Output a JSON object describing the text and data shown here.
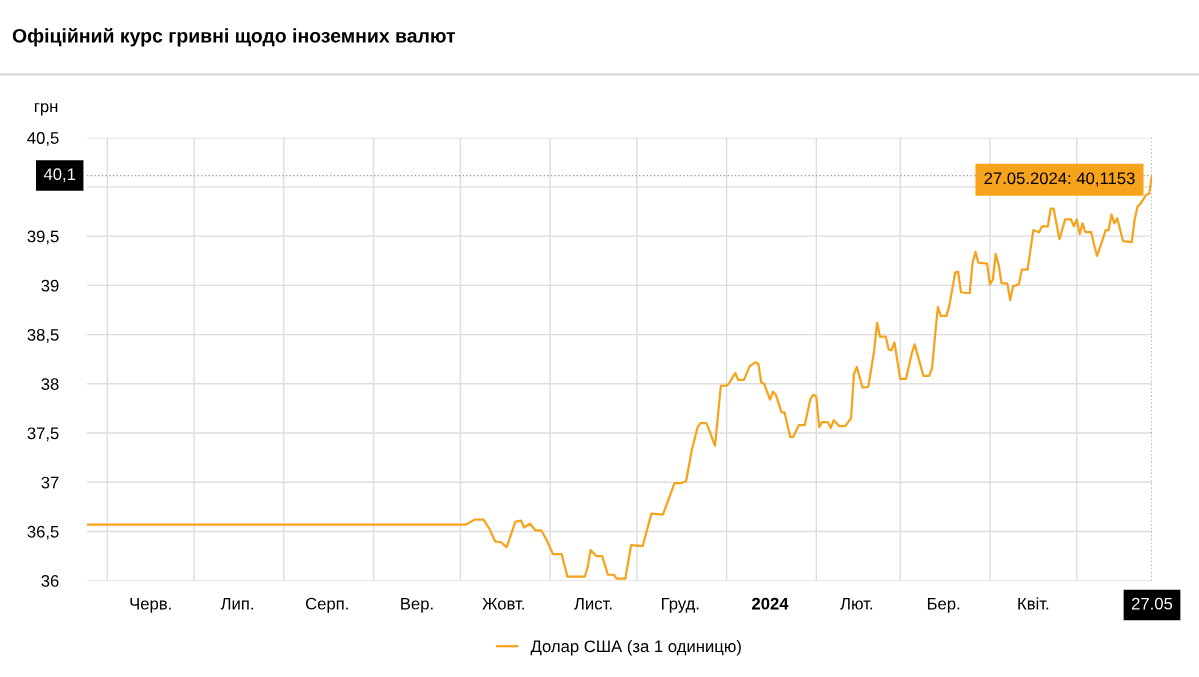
{
  "chart_data": {
    "type": "line",
    "title": "Офіційний курс гривні щодо іноземних валют",
    "ylabel": "грн",
    "x": [
      "2023-05-25",
      "2023-10-03",
      "2023-10-06",
      "2023-10-09",
      "2023-10-11",
      "2023-10-13",
      "2023-10-15",
      "2023-10-17",
      "2023-10-20",
      "2023-10-22",
      "2023-10-23",
      "2023-10-25",
      "2023-10-27",
      "2023-10-29",
      "2023-10-31",
      "2023-11-02",
      "2023-11-05",
      "2023-11-07",
      "2023-11-13",
      "2023-11-14",
      "2023-11-15",
      "2023-11-17",
      "2023-11-19",
      "2023-11-21",
      "2023-11-23",
      "2023-11-24",
      "2023-11-27",
      "2023-11-29",
      "2023-12-03",
      "2023-12-06",
      "2023-12-10",
      "2023-12-14",
      "2023-12-16",
      "2023-12-18",
      "2023-12-20",
      "2023-12-22",
      "2023-12-23",
      "2023-12-25",
      "2023-12-26",
      "2023-12-28",
      "2023-12-30",
      "2024-01-01",
      "2024-01-02",
      "2024-01-04",
      "2024-01-05",
      "2024-01-07",
      "2024-01-09",
      "2024-01-11",
      "2024-01-12",
      "2024-01-13",
      "2024-01-14",
      "2024-01-16",
      "2024-01-17",
      "2024-01-18",
      "2024-01-20",
      "2024-01-21",
      "2024-01-23",
      "2024-01-24",
      "2024-01-26",
      "2024-01-28",
      "2024-01-30",
      "2024-01-31",
      "2024-02-01",
      "2024-02-02",
      "2024-02-03",
      "2024-02-05",
      "2024-02-06",
      "2024-02-07",
      "2024-02-09",
      "2024-02-11",
      "2024-02-13",
      "2024-02-14",
      "2024-02-15",
      "2024-02-17",
      "2024-02-19",
      "2024-02-21",
      "2024-02-22",
      "2024-02-23",
      "2024-02-25",
      "2024-02-26",
      "2024-02-27",
      "2024-02-28",
      "2024-03-01",
      "2024-03-03",
      "2024-03-05",
      "2024-03-06",
      "2024-03-09",
      "2024-03-11",
      "2024-03-12",
      "2024-03-13",
      "2024-03-14",
      "2024-03-15",
      "2024-03-17",
      "2024-03-18",
      "2024-03-20",
      "2024-03-21",
      "2024-03-22",
      "2024-03-25",
      "2024-03-26",
      "2024-03-27",
      "2024-03-28",
      "2024-03-31",
      "2024-04-01",
      "2024-04-02",
      "2024-04-03",
      "2024-04-04",
      "2024-04-05",
      "2024-04-07",
      "2024-04-08",
      "2024-04-09",
      "2024-04-11",
      "2024-04-12",
      "2024-04-14",
      "2024-04-16",
      "2024-04-18",
      "2024-04-19",
      "2024-04-21",
      "2024-04-22",
      "2024-04-23",
      "2024-04-25",
      "2024-04-27",
      "2024-04-29",
      "2024-04-30",
      "2024-05-01",
      "2024-05-02",
      "2024-05-03",
      "2024-05-04",
      "2024-05-06",
      "2024-05-07",
      "2024-05-08",
      "2024-05-09",
      "2024-05-11",
      "2024-05-12",
      "2024-05-13",
      "2024-05-14",
      "2024-05-15",
      "2024-05-17",
      "2024-05-20",
      "2024-05-21",
      "2024-05-22",
      "2024-05-23",
      "2024-05-25",
      "2024-05-26",
      "2024-05-27"
    ],
    "series": [
      {
        "name": "Долар США (за 1 одиницю)",
        "color": "#f7a21b",
        "values": [
          36.57,
          36.57,
          36.62,
          36.62,
          36.53,
          36.4,
          36.39,
          36.34,
          36.6,
          36.61,
          36.54,
          36.58,
          36.51,
          36.51,
          36.4,
          36.27,
          36.27,
          36.04,
          36.04,
          36.14,
          36.31,
          36.25,
          36.25,
          36.06,
          36.06,
          36.02,
          36.02,
          36.36,
          36.35,
          36.68,
          36.67,
          36.99,
          36.99,
          37.01,
          37.33,
          37.56,
          37.6,
          37.6,
          37.53,
          37.37,
          37.98,
          37.98,
          38.01,
          38.11,
          38.04,
          38.04,
          38.18,
          38.22,
          38.2,
          38.01,
          38.0,
          37.84,
          37.92,
          37.89,
          37.71,
          37.71,
          37.46,
          37.46,
          37.58,
          37.58,
          37.85,
          37.89,
          37.87,
          37.56,
          37.61,
          37.61,
          37.55,
          37.63,
          37.57,
          37.57,
          37.65,
          38.1,
          38.17,
          37.96,
          37.97,
          38.34,
          38.62,
          38.48,
          38.48,
          38.35,
          38.34,
          38.42,
          38.05,
          38.05,
          38.31,
          38.4,
          38.08,
          38.08,
          38.16,
          38.48,
          38.78,
          38.69,
          38.69,
          38.8,
          39.13,
          39.14,
          38.93,
          38.92,
          39.23,
          39.34,
          39.23,
          39.22,
          39.01,
          39.06,
          39.32,
          39.21,
          39.02,
          39.02,
          38.85,
          38.99,
          39.01,
          39.16,
          39.16,
          39.56,
          39.54,
          39.6,
          39.6,
          39.78,
          39.78,
          39.47,
          39.67,
          39.67,
          39.6,
          39.67,
          39.52,
          39.63,
          39.54,
          39.54,
          39.41,
          39.3,
          39.38,
          39.56,
          39.56,
          39.72,
          39.63,
          39.68,
          39.45,
          39.44,
          39.67,
          39.8,
          39.83,
          39.92,
          39.93,
          40.1153
        ]
      }
    ],
    "xlim": [
      "2023-05-25",
      "2024-05-27"
    ],
    "xticks": [
      {
        "value": "2023-06-01",
        "label": null
      },
      {
        "value": "2023-06-16",
        "label": "Черв."
      },
      {
        "value": "2023-07-01",
        "label": null
      },
      {
        "value": "2023-07-16",
        "label": "Лип."
      },
      {
        "value": "2023-08-01",
        "label": null
      },
      {
        "value": "2023-08-16",
        "label": "Серп."
      },
      {
        "value": "2023-09-01",
        "label": null
      },
      {
        "value": "2023-09-16",
        "label": "Вер."
      },
      {
        "value": "2023-10-01",
        "label": null
      },
      {
        "value": "2023-10-16",
        "label": "Жовт."
      },
      {
        "value": "2023-11-01",
        "label": null
      },
      {
        "value": "2023-11-16",
        "label": "Лист."
      },
      {
        "value": "2023-12-01",
        "label": null
      },
      {
        "value": "2023-12-16",
        "label": "Груд."
      },
      {
        "value": "2024-01-01",
        "label": null
      },
      {
        "value": "2024-01-16",
        "label": "2024"
      },
      {
        "value": "2024-02-01",
        "label": null
      },
      {
        "value": "2024-02-15",
        "label": "Лют."
      },
      {
        "value": "2024-03-01",
        "label": null
      },
      {
        "value": "2024-03-16",
        "label": "Бер."
      },
      {
        "value": "2024-04-01",
        "label": null
      },
      {
        "value": "2024-04-16",
        "label": "Квіт."
      },
      {
        "value": "2024-05-01",
        "label": null
      },
      {
        "value": "2024-05-27",
        "label": "27.05"
      }
    ],
    "ylim": [
      36,
      40.5
    ],
    "yticks": [
      36,
      {
        "value": 36.5,
        "label": "36,5"
      },
      37,
      {
        "value": 37.5,
        "label": "37,5"
      },
      38,
      {
        "value": 38.5,
        "label": "38,5"
      },
      39,
      {
        "value": 39.5,
        "label": "39,5"
      },
      {
        "value": 40,
        "label": null
      },
      {
        "value": 40.5,
        "label": "40,5"
      }
    ],
    "ref_lines": [
      {
        "axis": "y",
        "value": 40.1153,
        "label": "40,1",
        "color": "#999999",
        "line_style": "dotted"
      },
      {
        "axis": "x",
        "value": "2024-05-27",
        "label": null,
        "color": "#999999",
        "line_style": "dotted"
      }
    ],
    "annotations": [
      {
        "text": "27.05.2024: 40,1153",
        "x": "2024-05-27",
        "y": 40.1153
      }
    ],
    "grid": true,
    "legend": "bottom",
    "line_style": "solid"
  }
}
